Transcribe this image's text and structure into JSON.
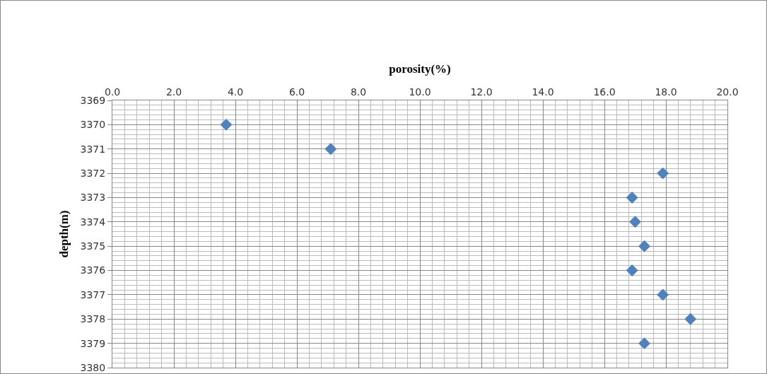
{
  "chart_data": {
    "type": "scatter",
    "xlabel": "porosity(%)",
    "ylabel": "depth(m)",
    "x": [
      3.7,
      7.1,
      17.9,
      16.9,
      17.0,
      17.3,
      16.9,
      17.9,
      18.8,
      17.3
    ],
    "values": [
      3370,
      3371,
      3372,
      3373,
      3374,
      3375,
      3376,
      3377,
      3378,
      3379
    ],
    "color": "#4f81bd",
    "marker": "diamond",
    "grid": true,
    "xlim": [
      0,
      20
    ],
    "xticks": [
      {
        "value": 0,
        "label": "0.0"
      },
      {
        "value": 2,
        "label": "2.0"
      },
      {
        "value": 4,
        "label": "4.0"
      },
      {
        "value": 6,
        "label": "6.0"
      },
      {
        "value": 8,
        "label": "8.0"
      },
      {
        "value": 10,
        "label": "10.0"
      },
      {
        "value": 12,
        "label": "12.0"
      },
      {
        "value": 14,
        "label": "14.0"
      },
      {
        "value": 16,
        "label": "16.0"
      },
      {
        "value": 18,
        "label": "18.0"
      },
      {
        "value": 20,
        "label": "20.0"
      }
    ],
    "ylim": [
      3380,
      3369
    ],
    "yticks": [
      3369,
      3370,
      3371,
      3372,
      3373,
      3374,
      3375,
      3376,
      3377,
      3378,
      3379,
      3380
    ]
  }
}
